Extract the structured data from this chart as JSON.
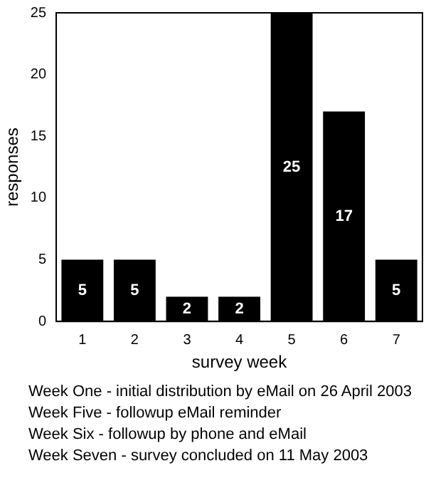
{
  "chart_data": {
    "type": "bar",
    "xlabel": "survey week",
    "ylabel": "responses",
    "categories": [
      "1",
      "2",
      "3",
      "4",
      "5",
      "6",
      "7"
    ],
    "values": [
      5,
      5,
      2,
      2,
      25,
      17,
      5
    ],
    "color": "#000000",
    "ylim": [
      0,
      25
    ],
    "yticks": [
      0,
      5,
      10,
      15,
      20,
      25
    ],
    "grid": false,
    "data_labels": true,
    "annotations": [
      "Week One - initial distribution by eMail on 26 April 2003",
      "Week Five - followup eMail reminder",
      "Week Six - followup by phone and eMail",
      "Week Seven - survey concluded on 11 May 2003"
    ]
  }
}
